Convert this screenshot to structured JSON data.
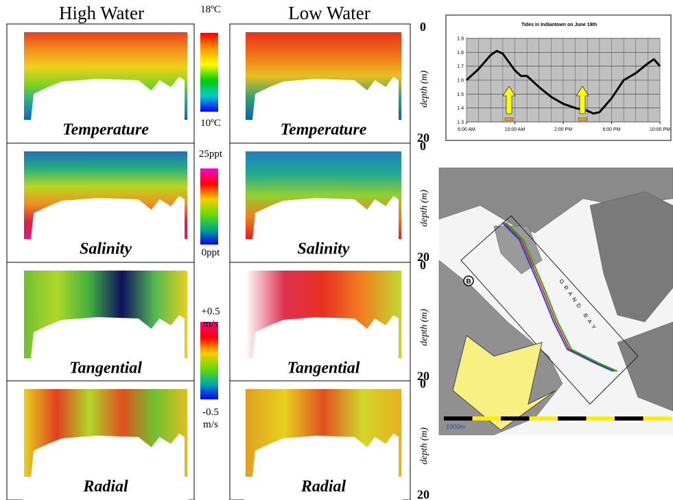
{
  "columns": [
    "High Water",
    "Low Water"
  ],
  "panels": [
    "Temperature",
    "Salinity",
    "Tangential",
    "Radial"
  ],
  "colorbars": [
    {
      "top": [
        "18ºC"
      ],
      "bottom": [
        "10ºC"
      ]
    },
    {
      "top": [
        "25ppt"
      ],
      "bottom": [
        "0ppt"
      ]
    },
    {
      "top": [
        "+0.5",
        "m/s"
      ],
      "bottom": [
        "-0.5",
        "m/s"
      ]
    }
  ],
  "depth_axis": {
    "label": "depth (m)",
    "top": "0",
    "bottom": "20"
  },
  "map": {
    "marker": "B",
    "place": "GRAND BAY",
    "scale_label": "1000m"
  },
  "chart_data": {
    "type": "line",
    "title": "Tides in Indiantown on June 19th",
    "x": [
      6,
      7,
      8,
      8.5,
      9,
      10,
      10.5,
      11,
      12,
      13,
      14,
      15,
      16,
      16.5,
      17,
      18,
      19,
      20,
      21,
      21.5,
      22
    ],
    "series": [
      {
        "color": "#000000",
        "values": [
          1.6,
          1.68,
          1.78,
          1.81,
          1.79,
          1.67,
          1.63,
          1.63,
          1.55,
          1.48,
          1.43,
          1.4,
          1.38,
          1.36,
          1.37,
          1.47,
          1.6,
          1.65,
          1.72,
          1.75,
          1.7
        ]
      }
    ],
    "xlim": [
      6,
      22
    ],
    "xticks": [
      {
        "value": 6,
        "label": "6:00 AM"
      },
      {
        "value": 10,
        "label": "10:00 AM"
      },
      {
        "value": 14,
        "label": "2:00 PM"
      },
      {
        "value": 18,
        "label": "6:00 PM"
      },
      {
        "value": 22,
        "label": "10:00 PM"
      }
    ],
    "ylim": [
      1.3,
      1.9
    ],
    "yticks": [
      1.3,
      1.4,
      1.5,
      1.6,
      1.7,
      1.8,
      1.9
    ],
    "grid": true
  }
}
